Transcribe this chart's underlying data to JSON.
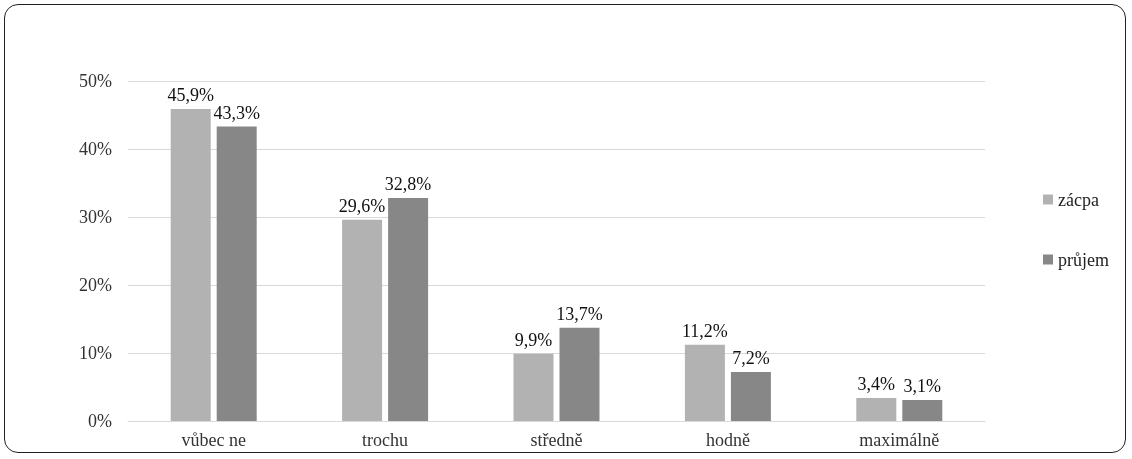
{
  "chart_data": {
    "type": "bar",
    "categories": [
      "vůbec ne",
      "trochu",
      "středně",
      "hodně",
      "maximálně"
    ],
    "series": [
      {
        "name": "zácpa",
        "color": "#b2b2b2",
        "values": [
          45.9,
          29.6,
          9.9,
          11.2,
          3.4
        ],
        "value_labels": [
          "45,9%",
          "29,6%",
          "9,9%",
          "11,2%",
          "3,4%"
        ]
      },
      {
        "name": "průjem",
        "color": "#878787",
        "values": [
          43.3,
          32.8,
          13.7,
          7.2,
          3.1
        ],
        "value_labels": [
          "43,3%",
          "32,8%",
          "13,7%",
          "7,2%",
          "3,1%"
        ]
      }
    ],
    "ylim": [
      0,
      50
    ],
    "yticks": [
      {
        "value": 0,
        "label": "0%"
      },
      {
        "value": 10,
        "label": "10%"
      },
      {
        "value": 20,
        "label": "20%"
      },
      {
        "value": 30,
        "label": "30%"
      },
      {
        "value": 40,
        "label": "40%"
      },
      {
        "value": 50,
        "label": "50%"
      }
    ],
    "grid": "y",
    "legend": "right"
  }
}
